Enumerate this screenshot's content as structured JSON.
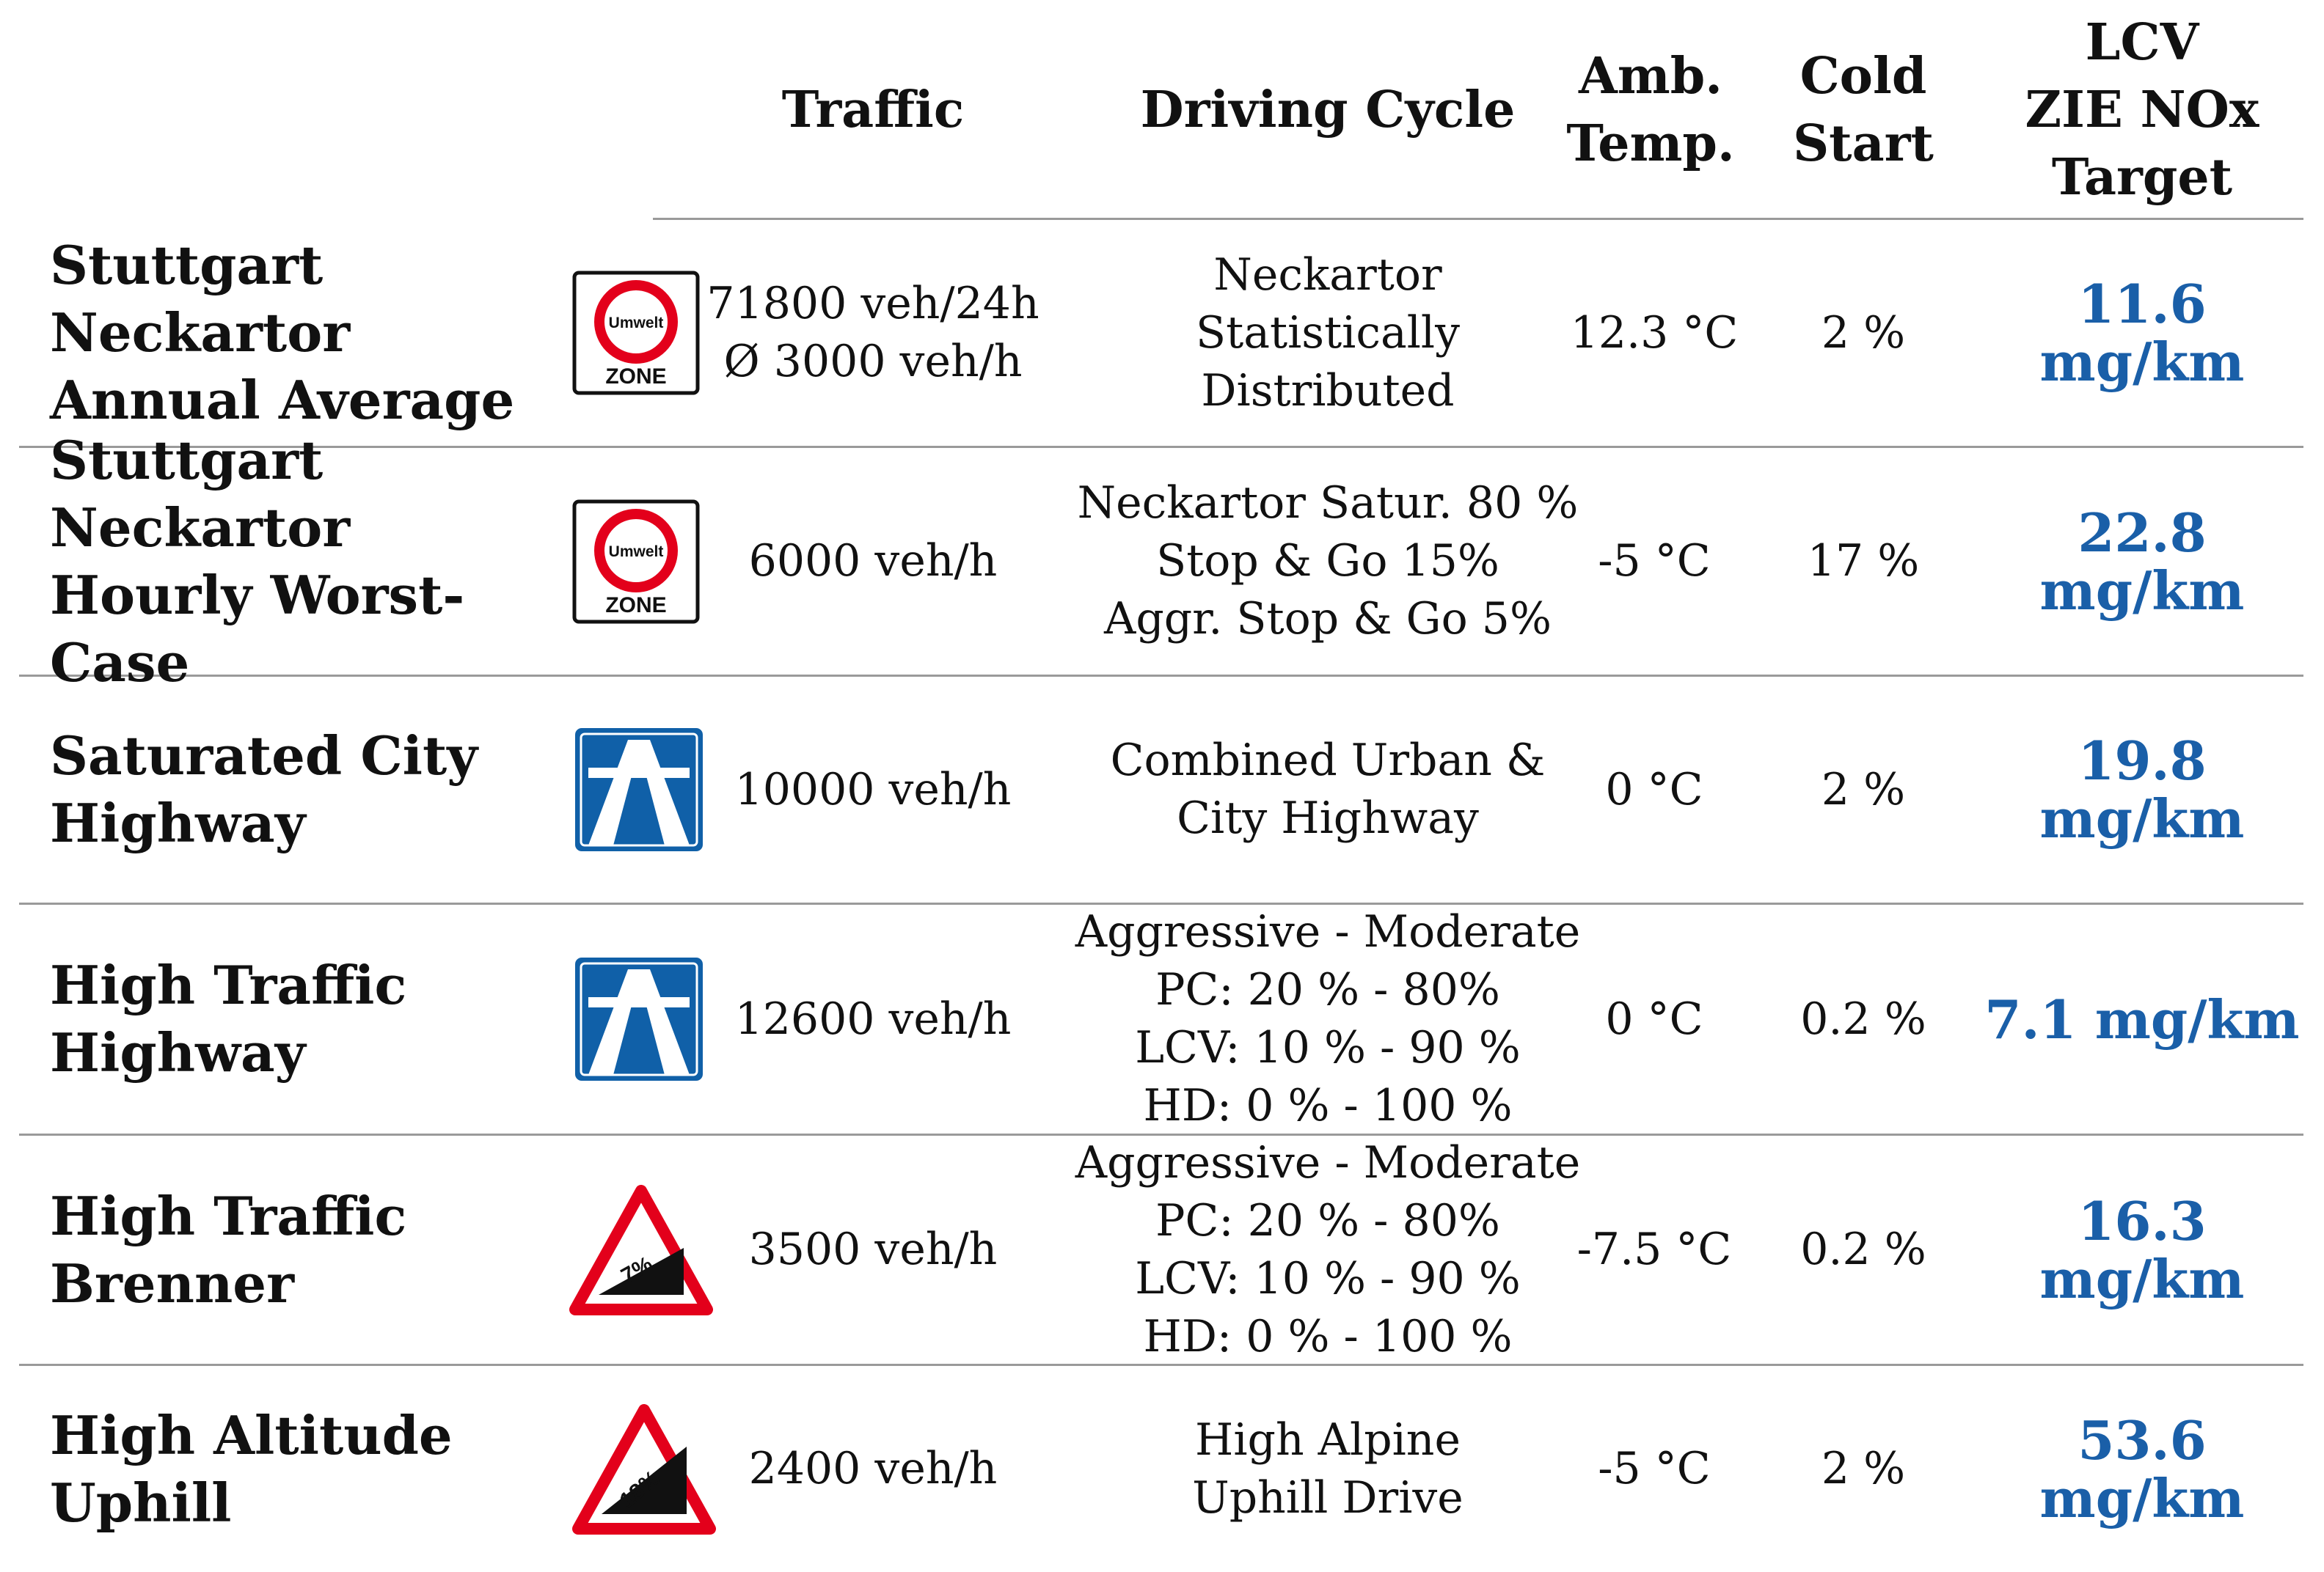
{
  "header": {
    "traffic": "Traffic",
    "cycle": "Driving Cycle",
    "temp": [
      "Amb.",
      "Temp."
    ],
    "cold": [
      "Cold",
      "Start"
    ],
    "target": [
      "LCV",
      "ZIE NOx",
      "Target"
    ]
  },
  "rows": [
    {
      "name": [
        "Stuttgart Neckartor",
        "Annual Average"
      ],
      "icon": "umwelt-zone-sign-icon",
      "sign": {
        "top": "Umwelt",
        "bottom": "ZONE"
      },
      "traffic": [
        "71800 veh/24h",
        "Ø 3000 veh/h"
      ],
      "cycle": [
        "Neckartor",
        "Statistically",
        "Distributed"
      ],
      "temp": "12.3 °C",
      "cold": "2 %",
      "target": "11.6 mg/km"
    },
    {
      "name": [
        "Stuttgart Neckartor",
        "Hourly Worst-Case"
      ],
      "icon": "umwelt-zone-sign-icon",
      "sign": {
        "top": "Umwelt",
        "bottom": "ZONE"
      },
      "traffic": [
        "6000  veh/h"
      ],
      "cycle": [
        "Neckartor Satur. 80 %",
        "Stop & Go 15%",
        "Aggr. Stop & Go 5%"
      ],
      "temp": "-5 °C",
      "cold": "17 %",
      "target": "22.8 mg/km"
    },
    {
      "name": [
        "Saturated City",
        "Highway"
      ],
      "icon": "autobahn-sign-icon",
      "traffic": [
        "10000 veh/h"
      ],
      "cycle": [
        "Combined Urban &",
        "City Highway"
      ],
      "temp": "0 °C",
      "cold": "2 %",
      "target": "19.8 mg/km"
    },
    {
      "name": [
        "High Traffic",
        "Highway"
      ],
      "icon": "autobahn-sign-icon",
      "traffic": [
        "12600 veh/h"
      ],
      "cycle": [
        "Aggressive - Moderate",
        "PC: 20 % - 80%",
        "LCV: 10 % - 90 %",
        "HD: 0 % - 100 %"
      ],
      "temp": "0 °C",
      "cold": "0.2 %",
      "target": "7.1 mg/km"
    },
    {
      "name": [
        "High Traffic",
        "Brenner"
      ],
      "icon": "gradient-warning-sign-icon",
      "sign": {
        "grade": "7%"
      },
      "traffic": [
        "3500 veh/h"
      ],
      "cycle": [
        "Aggressive - Moderate",
        "PC: 20 % - 80%",
        "LCV: 10 % - 90 %",
        "HD: 0 % - 100 %"
      ],
      "temp": "-7.5 °C",
      "cold": "0.2 %",
      "target": "16.3 mg/km"
    },
    {
      "name": [
        "High Altitude",
        "Uphill"
      ],
      "icon": "gradient-warning-sign-icon",
      "sign": {
        "grade": "18%"
      },
      "traffic": [
        "2400  veh/h"
      ],
      "cycle": [
        "High Alpine",
        "Uphill Drive"
      ],
      "temp": "-5 °C",
      "cold": "2 %",
      "target": "53.6 mg/km"
    }
  ],
  "colors": {
    "target": "#1a5fa8",
    "sign_red": "#e3001b",
    "sign_blue": "#1060a8",
    "rule": "#9a9a9a"
  }
}
